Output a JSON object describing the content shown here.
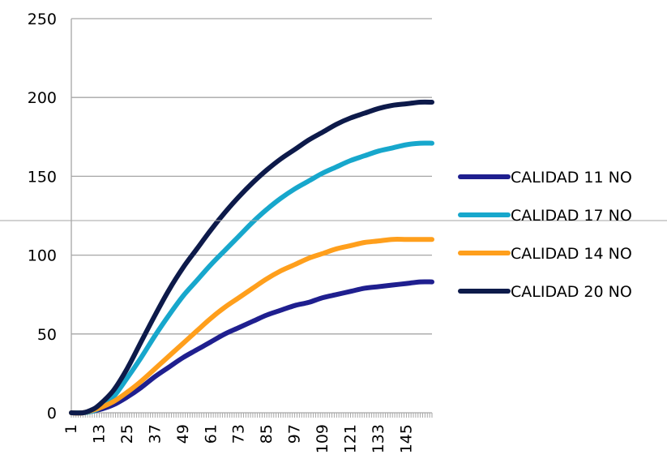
{
  "chart_data": {
    "type": "line",
    "x_start": 1,
    "x_end": 156,
    "x_tick_labels": [
      "1",
      "13",
      "25",
      "37",
      "49",
      "61",
      "73",
      "85",
      "97",
      "109",
      "121",
      "133",
      "145"
    ],
    "y_tick_labels": [
      "0",
      "50",
      "100",
      "150",
      "200",
      "250"
    ],
    "ylim": [
      0,
      250
    ],
    "xlim": [
      1,
      156
    ],
    "grid": "horizontal",
    "legend_position": "right",
    "series": [
      {
        "name": "CALIDAD 11 NO",
        "color": "#1f1f8f",
        "points": [
          [
            1,
            0
          ],
          [
            6,
            0
          ],
          [
            13,
            2
          ],
          [
            19,
            5
          ],
          [
            25,
            10
          ],
          [
            31,
            16
          ],
          [
            37,
            23
          ],
          [
            43,
            29
          ],
          [
            49,
            35
          ],
          [
            55,
            40
          ],
          [
            61,
            45
          ],
          [
            67,
            50
          ],
          [
            73,
            54
          ],
          [
            79,
            58
          ],
          [
            85,
            62
          ],
          [
            91,
            65
          ],
          [
            97,
            68
          ],
          [
            103,
            70
          ],
          [
            109,
            73
          ],
          [
            115,
            75
          ],
          [
            121,
            77
          ],
          [
            127,
            79
          ],
          [
            133,
            80
          ],
          [
            139,
            81
          ],
          [
            145,
            82
          ],
          [
            151,
            83
          ],
          [
            156,
            83
          ]
        ]
      },
      {
        "name": "CALIDAD 17 NO",
        "color": "#17a7cc",
        "points": [
          [
            1,
            0
          ],
          [
            6,
            0
          ],
          [
            10,
            1
          ],
          [
            13,
            3
          ],
          [
            19,
            10
          ],
          [
            25,
            22
          ],
          [
            31,
            35
          ],
          [
            37,
            49
          ],
          [
            43,
            62
          ],
          [
            49,
            74
          ],
          [
            55,
            84
          ],
          [
            61,
            94
          ],
          [
            67,
            103
          ],
          [
            73,
            112
          ],
          [
            79,
            121
          ],
          [
            85,
            129
          ],
          [
            91,
            136
          ],
          [
            97,
            142
          ],
          [
            103,
            147
          ],
          [
            109,
            152
          ],
          [
            115,
            156
          ],
          [
            121,
            160
          ],
          [
            127,
            163
          ],
          [
            133,
            166
          ],
          [
            139,
            168
          ],
          [
            145,
            170
          ],
          [
            151,
            171
          ],
          [
            156,
            171
          ]
        ]
      },
      {
        "name": "CALIDAD 14 NO",
        "color": "#ff9f1c",
        "points": [
          [
            1,
            0
          ],
          [
            6,
            0
          ],
          [
            13,
            3
          ],
          [
            19,
            7
          ],
          [
            25,
            13
          ],
          [
            31,
            20
          ],
          [
            37,
            28
          ],
          [
            43,
            36
          ],
          [
            49,
            44
          ],
          [
            55,
            52
          ],
          [
            61,
            60
          ],
          [
            67,
            67
          ],
          [
            73,
            73
          ],
          [
            79,
            79
          ],
          [
            85,
            85
          ],
          [
            91,
            90
          ],
          [
            97,
            94
          ],
          [
            103,
            98
          ],
          [
            109,
            101
          ],
          [
            115,
            104
          ],
          [
            121,
            106
          ],
          [
            127,
            108
          ],
          [
            133,
            109
          ],
          [
            139,
            110
          ],
          [
            145,
            110
          ],
          [
            151,
            110
          ],
          [
            156,
            110
          ]
        ]
      },
      {
        "name": "CALIDAD 20 NO",
        "color": "#0d1a4a",
        "points": [
          [
            1,
            0
          ],
          [
            6,
            0
          ],
          [
            10,
            2
          ],
          [
            13,
            5
          ],
          [
            19,
            14
          ],
          [
            25,
            28
          ],
          [
            31,
            45
          ],
          [
            37,
            62
          ],
          [
            43,
            78
          ],
          [
            49,
            92
          ],
          [
            55,
            104
          ],
          [
            61,
            116
          ],
          [
            67,
            127
          ],
          [
            73,
            137
          ],
          [
            79,
            146
          ],
          [
            85,
            154
          ],
          [
            91,
            161
          ],
          [
            97,
            167
          ],
          [
            103,
            173
          ],
          [
            109,
            178
          ],
          [
            115,
            183
          ],
          [
            121,
            187
          ],
          [
            127,
            190
          ],
          [
            133,
            193
          ],
          [
            139,
            195
          ],
          [
            145,
            196
          ],
          [
            151,
            197
          ],
          [
            156,
            197
          ]
        ]
      }
    ]
  }
}
